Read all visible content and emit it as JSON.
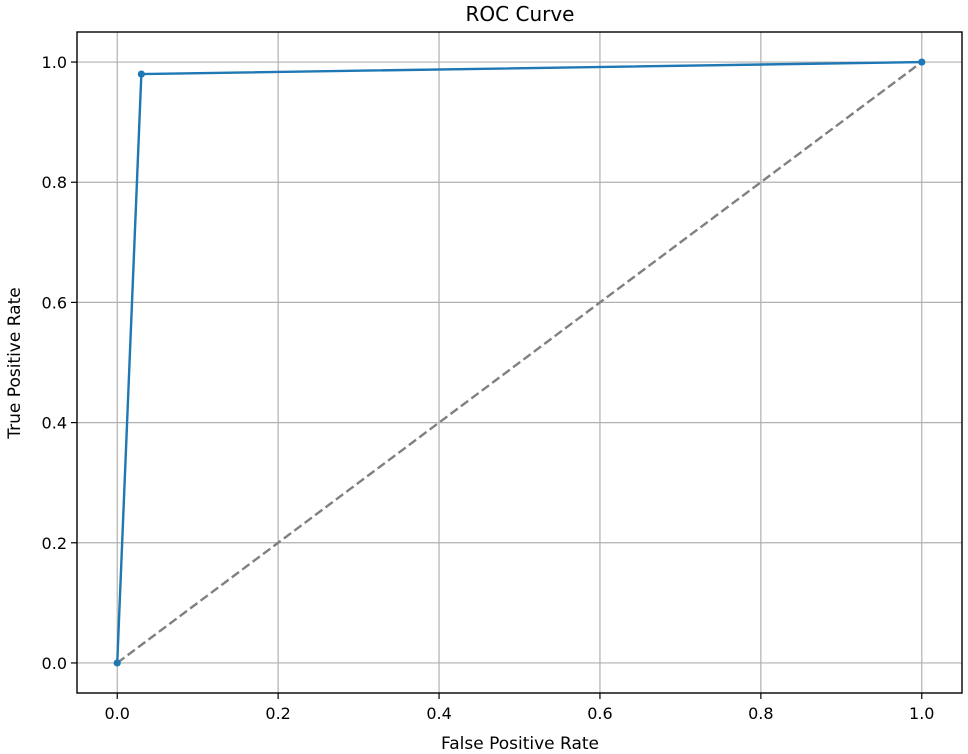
{
  "chart_data": {
    "type": "line",
    "title": "ROC Curve",
    "xlabel": "False Positive Rate",
    "ylabel": "True Positive Rate",
    "xlim": [
      -0.05,
      1.05
    ],
    "ylim": [
      -0.05,
      1.05
    ],
    "xticks": [
      0.0,
      0.2,
      0.4,
      0.6,
      0.8,
      1.0
    ],
    "yticks": [
      0.0,
      0.2,
      0.4,
      0.6,
      0.8,
      1.0
    ],
    "xtick_labels": [
      "0.0",
      "0.2",
      "0.4",
      "0.6",
      "0.8",
      "1.0"
    ],
    "ytick_labels": [
      "0.0",
      "0.2",
      "0.4",
      "0.6",
      "0.8",
      "1.0"
    ],
    "grid": true,
    "series": [
      {
        "x": [
          0.0,
          0.03,
          1.0
        ],
        "y": [
          0.0,
          0.98,
          1.0
        ],
        "color": "#1f77b4",
        "style": "solid",
        "marker": "circle"
      },
      {
        "x": [
          0.0,
          1.0
        ],
        "y": [
          0.0,
          1.0
        ],
        "color": "#808080",
        "style": "dashed",
        "marker": "none"
      }
    ]
  }
}
